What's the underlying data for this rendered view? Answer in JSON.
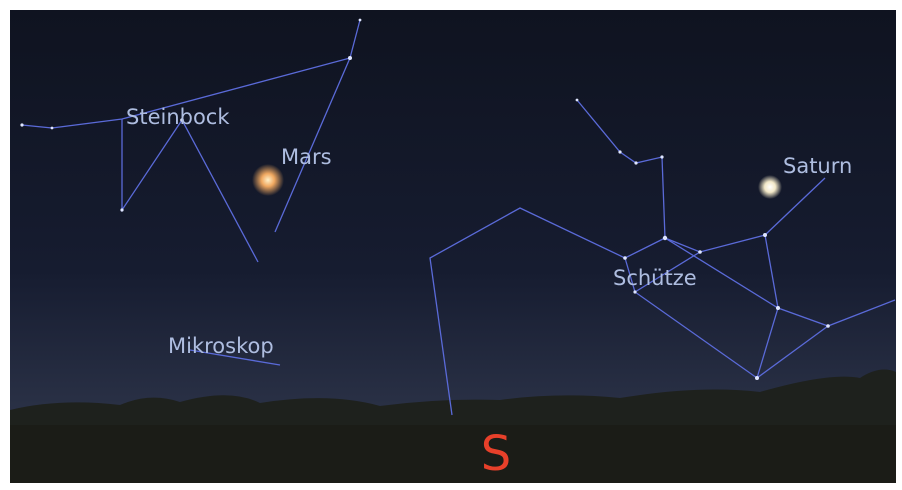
{
  "labels": {
    "steinbock": "Steinbock",
    "mars": "Mars",
    "mikroskop": "Mikroskop",
    "saturn": "Saturn",
    "schuetze": "Schütze",
    "direction": "S"
  }
}
